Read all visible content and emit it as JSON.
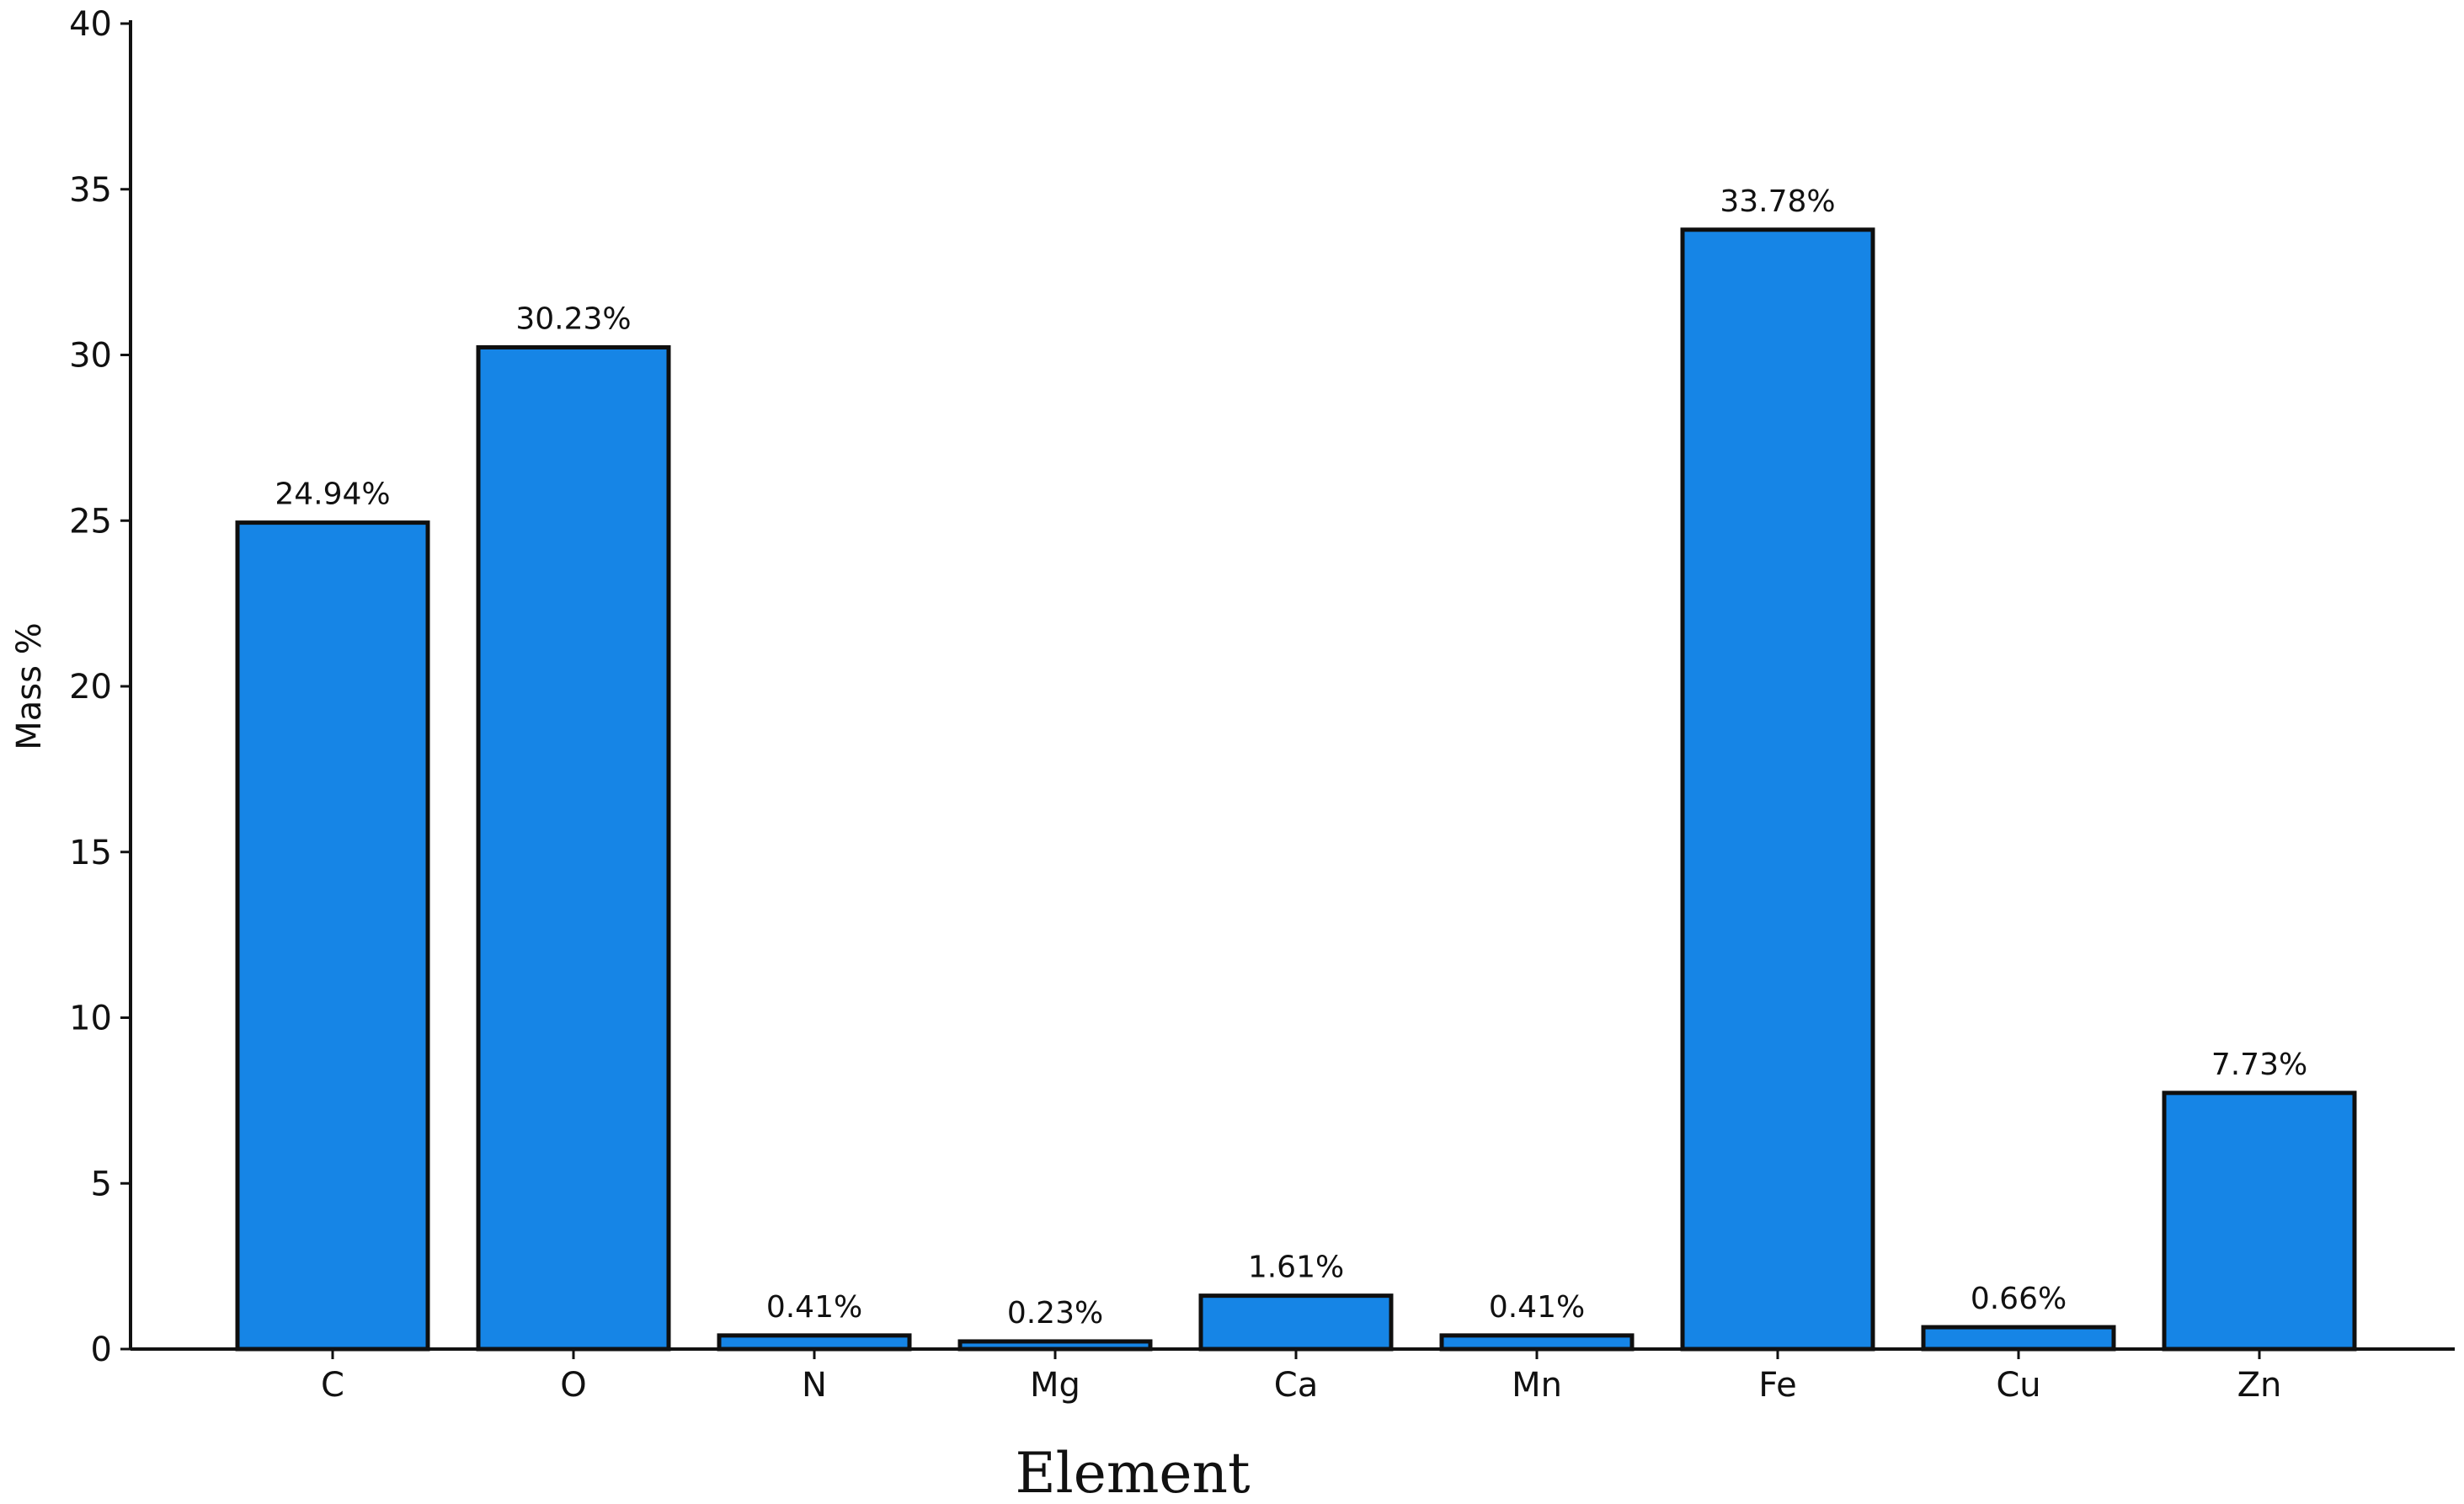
{
  "chart_data": {
    "type": "bar",
    "categories": [
      "C",
      "O",
      "N",
      "Mg",
      "Ca",
      "Mn",
      "Fe",
      "Cu",
      "Zn"
    ],
    "values": [
      24.94,
      30.23,
      0.41,
      0.23,
      1.61,
      0.41,
      33.78,
      0.66,
      7.73
    ],
    "data_labels": [
      "24.94%",
      "30.23%",
      "0.41%",
      "0.23%",
      "1.61%",
      "0.41%",
      "33.78%",
      "0.66%",
      "7.73%"
    ],
    "title": "",
    "xlabel": "Element",
    "ylabel": "Mass %",
    "ylim": [
      0,
      40
    ],
    "yticks": [
      0,
      5,
      10,
      15,
      20,
      25,
      30,
      35,
      40
    ],
    "grid": false,
    "legend": "none",
    "bar_color": "#1685E6"
  }
}
